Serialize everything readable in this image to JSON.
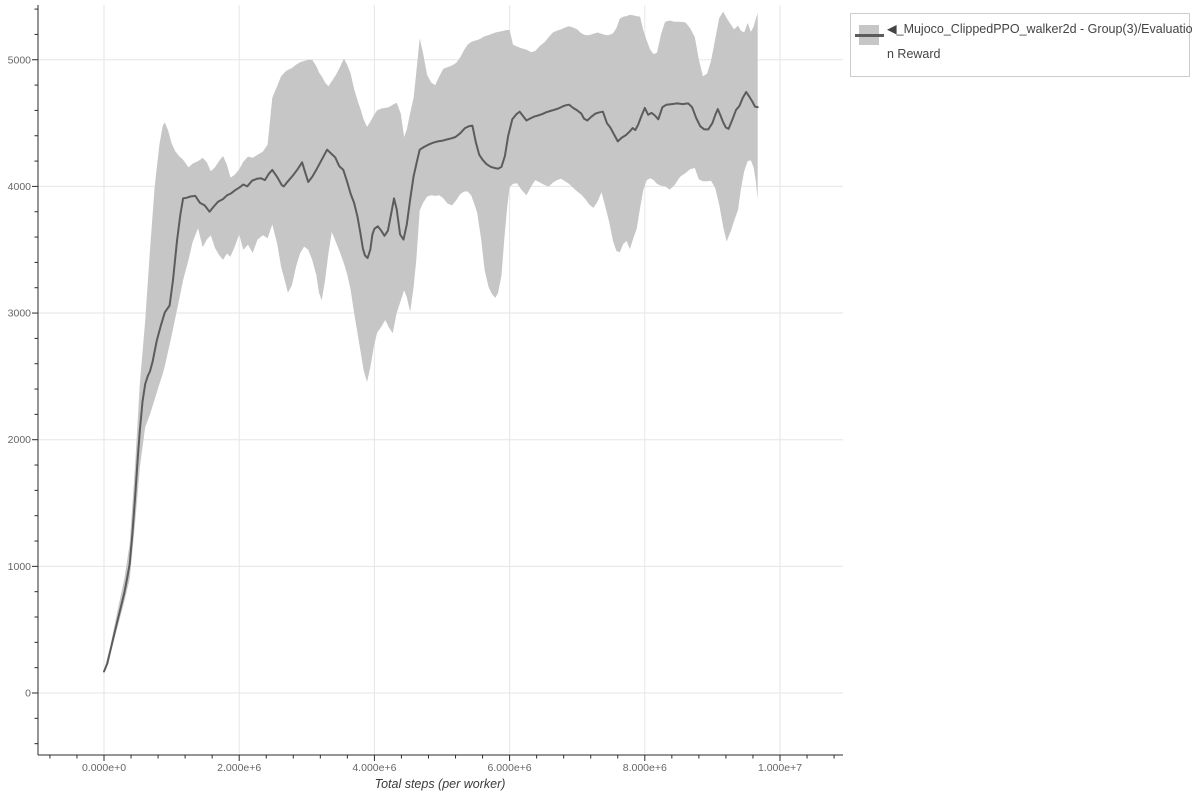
{
  "legend": {
    "label_full": "◀_Mujoco_ClippedPPO_walker2d - Group(3)/Evaluation Reward",
    "label_line1": "◀_Mujoco_ClippedPPO_walker2d - Group(3)/Evaluatio",
    "label_line2": "n Reward"
  },
  "colors": {
    "band": "#c6c6c6",
    "mean_line": "#5c5c5c",
    "grid": "#e6e6e6",
    "axis": "#2b2b2b",
    "tick_label": "#666666",
    "legend_border": "#cccccc"
  },
  "chart_data": {
    "type": "line",
    "title": "",
    "xlabel": "Total steps (per worker)",
    "ylabel": "",
    "x_units": "steps (values in millions)",
    "grid": true,
    "legend_position": "top-right-outside",
    "x_tick_values": [
      0,
      2,
      4,
      6,
      8,
      10
    ],
    "x_tick_labels": [
      "0.000e+0",
      "2.000e+6",
      "4.000e+6",
      "6.000e+6",
      "8.000e+6",
      "1.000e+7"
    ],
    "y_tick_values": [
      0,
      1000,
      2000,
      3000,
      4000,
      5000
    ],
    "y_tick_labels": [
      "0",
      "1000",
      "2000",
      "3000",
      "4000",
      "5000"
    ],
    "xlim": [
      -0.98,
      10.93
    ],
    "ylim": [
      -490,
      5435
    ],
    "minor_x_step": 0.4,
    "minor_y_step": 200,
    "series": [
      {
        "name": "◀_Mujoco_ClippedPPO_walker2d - Group(3)/Evaluation Reward",
        "x": [
          0,
          0.05,
          0.1,
          0.15,
          0.2,
          0.25,
          0.3,
          0.34,
          0.38,
          0.42,
          0.46,
          0.5,
          0.53,
          0.57,
          0.61,
          0.65,
          0.68,
          0.72,
          0.78,
          0.84,
          0.9,
          0.97,
          1.02,
          1.08,
          1.13,
          1.17,
          1.22,
          1.28,
          1.35,
          1.42,
          1.49,
          1.56,
          1.63,
          1.69,
          1.76,
          1.82,
          1.88,
          1.94,
          2.0,
          2.06,
          2.12,
          2.19,
          2.26,
          2.32,
          2.38,
          2.44,
          2.49,
          2.56,
          2.63,
          2.66,
          2.72,
          2.8,
          2.87,
          2.93,
          2.97,
          3.02,
          3.08,
          3.15,
          3.22,
          3.3,
          3.36,
          3.42,
          3.48,
          3.54,
          3.6,
          3.65,
          3.7,
          3.75,
          3.79,
          3.83,
          3.86,
          3.9,
          3.94,
          3.97,
          4.0,
          4.05,
          4.1,
          4.15,
          4.2,
          4.25,
          4.29,
          4.33,
          4.38,
          4.43,
          4.48,
          4.53,
          4.58,
          4.63,
          4.67,
          4.73,
          4.8,
          4.87,
          4.94,
          5.0,
          5.07,
          5.14,
          5.2,
          5.27,
          5.34,
          5.4,
          5.45,
          5.5,
          5.55,
          5.6,
          5.66,
          5.72,
          5.78,
          5.83,
          5.88,
          5.93,
          5.98,
          6.04,
          6.1,
          6.15,
          6.2,
          6.25,
          6.3,
          6.36,
          6.42,
          6.48,
          6.54,
          6.6,
          6.66,
          6.72,
          6.78,
          6.83,
          6.88,
          6.94,
          7.0,
          7.06,
          7.1,
          7.15,
          7.21,
          7.27,
          7.33,
          7.38,
          7.44,
          7.49,
          7.55,
          7.6,
          7.66,
          7.72,
          7.78,
          7.82,
          7.86,
          7.9,
          7.95,
          8.0,
          8.05,
          8.1,
          8.15,
          8.2,
          8.26,
          8.32,
          8.4,
          8.48,
          8.56,
          8.64,
          8.7,
          8.76,
          8.82,
          8.88,
          8.94,
          9.0,
          9.05,
          9.08,
          9.12,
          9.16,
          9.2,
          9.24,
          9.29,
          9.35,
          9.4,
          9.45,
          9.5,
          9.55,
          9.59,
          9.63,
          9.67
        ],
        "mean": [
          170,
          235,
          350,
          460,
          570,
          680,
          790,
          900,
          1020,
          1260,
          1545,
          1860,
          2070,
          2300,
          2440,
          2505,
          2540,
          2620,
          2780,
          2900,
          3005,
          3060,
          3260,
          3570,
          3780,
          3905,
          3910,
          3920,
          3925,
          3870,
          3850,
          3800,
          3845,
          3880,
          3900,
          3930,
          3945,
          3970,
          3990,
          4015,
          4000,
          4045,
          4060,
          4065,
          4050,
          4100,
          4130,
          4075,
          4010,
          4000,
          4040,
          4090,
          4140,
          4190,
          4120,
          4035,
          4075,
          4140,
          4210,
          4290,
          4260,
          4230,
          4160,
          4130,
          4030,
          3940,
          3870,
          3760,
          3640,
          3510,
          3455,
          3435,
          3500,
          3620,
          3665,
          3685,
          3650,
          3610,
          3650,
          3790,
          3905,
          3820,
          3620,
          3580,
          3700,
          3900,
          4080,
          4200,
          4290,
          4310,
          4330,
          4345,
          4355,
          4360,
          4370,
          4380,
          4390,
          4420,
          4460,
          4475,
          4480,
          4350,
          4250,
          4210,
          4175,
          4155,
          4145,
          4140,
          4155,
          4240,
          4400,
          4530,
          4570,
          4590,
          4555,
          4520,
          4535,
          4550,
          4560,
          4570,
          4585,
          4595,
          4605,
          4615,
          4630,
          4640,
          4645,
          4620,
          4600,
          4575,
          4535,
          4520,
          4550,
          4575,
          4585,
          4590,
          4500,
          4465,
          4405,
          4355,
          4385,
          4405,
          4435,
          4460,
          4445,
          4485,
          4555,
          4620,
          4565,
          4580,
          4560,
          4530,
          4625,
          4645,
          4650,
          4655,
          4650,
          4655,
          4625,
          4540,
          4475,
          4450,
          4450,
          4500,
          4575,
          4610,
          4560,
          4505,
          4465,
          4455,
          4520,
          4605,
          4635,
          4700,
          4745,
          4705,
          4670,
          4630,
          4625
        ]
      }
    ],
    "band": {
      "name": "std-band",
      "x": [
        0,
        0.1,
        0.2,
        0.3,
        0.38,
        0.46,
        0.53,
        0.61,
        0.68,
        0.75,
        0.82,
        0.87,
        0.9,
        0.95,
        1.0,
        1.05,
        1.11,
        1.17,
        1.25,
        1.31,
        1.39,
        1.46,
        1.52,
        1.58,
        1.64,
        1.7,
        1.76,
        1.82,
        1.87,
        1.93,
        2.0,
        2.06,
        2.13,
        2.2,
        2.27,
        2.35,
        2.42,
        2.49,
        2.56,
        2.62,
        2.68,
        2.72,
        2.78,
        2.84,
        2.9,
        2.96,
        3.02,
        3.08,
        3.14,
        3.18,
        3.22,
        3.27,
        3.32,
        3.37,
        3.43,
        3.49,
        3.55,
        3.6,
        3.65,
        3.7,
        3.75,
        3.8,
        3.84,
        3.89,
        3.94,
        3.99,
        4.04,
        4.1,
        4.16,
        4.21,
        4.27,
        4.33,
        4.39,
        4.44,
        4.48,
        4.53,
        4.58,
        4.62,
        4.67,
        4.72,
        4.78,
        4.84,
        4.9,
        4.96,
        5.02,
        5.08,
        5.15,
        5.21,
        5.27,
        5.33,
        5.38,
        5.43,
        5.48,
        5.52,
        5.58,
        5.63,
        5.69,
        5.74,
        5.79,
        5.83,
        5.88,
        5.92,
        5.96,
        6.0,
        6.05,
        6.11,
        6.18,
        6.25,
        6.32,
        6.38,
        6.45,
        6.52,
        6.58,
        6.64,
        6.7,
        6.76,
        6.82,
        6.88,
        6.94,
        7.0,
        7.06,
        7.12,
        7.18,
        7.24,
        7.3,
        7.36,
        7.42,
        7.47,
        7.53,
        7.58,
        7.63,
        7.68,
        7.73,
        7.78,
        7.83,
        7.88,
        7.93,
        7.98,
        8.03,
        8.08,
        8.13,
        8.18,
        8.24,
        8.3,
        8.37,
        8.44,
        8.52,
        8.6,
        8.67,
        8.74,
        8.8,
        8.86,
        8.92,
        8.98,
        9.04,
        9.1,
        9.16,
        9.21,
        9.27,
        9.32,
        9.38,
        9.42,
        9.47,
        9.52,
        9.57,
        9.61,
        9.64,
        9.67
      ],
      "lower": [
        165,
        320,
        520,
        720,
        900,
        1340,
        1780,
        2100,
        2200,
        2320,
        2440,
        2520,
        2580,
        2700,
        2820,
        2950,
        3100,
        3260,
        3420,
        3560,
        3670,
        3520,
        3580,
        3615,
        3515,
        3460,
        3420,
        3470,
        3445,
        3520,
        3620,
        3500,
        3540,
        3475,
        3580,
        3615,
        3590,
        3700,
        3550,
        3365,
        3245,
        3160,
        3220,
        3365,
        3470,
        3525,
        3500,
        3420,
        3300,
        3160,
        3100,
        3260,
        3470,
        3640,
        3560,
        3480,
        3390,
        3300,
        3180,
        3000,
        2840,
        2680,
        2550,
        2455,
        2570,
        2730,
        2845,
        2890,
        2945,
        2890,
        2840,
        3000,
        3100,
        3180,
        3125,
        3010,
        3205,
        3420,
        3810,
        3870,
        3920,
        3930,
        3925,
        3930,
        3905,
        3865,
        3850,
        3890,
        3940,
        3960,
        3960,
        3930,
        3860,
        3790,
        3580,
        3340,
        3205,
        3150,
        3120,
        3160,
        3300,
        3575,
        3815,
        3995,
        4020,
        4025,
        3970,
        3930,
        4000,
        4050,
        4030,
        4010,
        4000,
        4030,
        4050,
        4060,
        4040,
        4020,
        3990,
        3960,
        3935,
        3900,
        3855,
        3830,
        3880,
        3955,
        3830,
        3725,
        3570,
        3490,
        3480,
        3545,
        3570,
        3505,
        3590,
        3665,
        3830,
        3975,
        4050,
        4065,
        4050,
        4020,
        4005,
        4000,
        3975,
        4010,
        4075,
        4105,
        4135,
        4145,
        4055,
        4040,
        4040,
        4045,
        3990,
        3855,
        3680,
        3565,
        3645,
        3725,
        3815,
        3975,
        4120,
        4200,
        4205,
        4150,
        4050,
        3895
      ],
      "upper": [
        175,
        390,
        650,
        900,
        1180,
        1800,
        2440,
        2940,
        3500,
        4000,
        4330,
        4480,
        4505,
        4440,
        4340,
        4280,
        4240,
        4210,
        4150,
        4180,
        4200,
        4225,
        4190,
        4120,
        4150,
        4200,
        4240,
        4170,
        4070,
        4090,
        4135,
        4195,
        4235,
        4225,
        4250,
        4275,
        4330,
        4700,
        4790,
        4870,
        4905,
        4920,
        4935,
        4960,
        4980,
        4990,
        5000,
        5000,
        4950,
        4900,
        4870,
        4820,
        4790,
        4830,
        4880,
        4940,
        5010,
        4955,
        4890,
        4770,
        4680,
        4600,
        4530,
        4470,
        4510,
        4560,
        4600,
        4615,
        4620,
        4625,
        4645,
        4660,
        4575,
        4390,
        4450,
        4580,
        4700,
        4900,
        5170,
        5050,
        4880,
        4820,
        4800,
        4870,
        4930,
        4940,
        4955,
        4975,
        5020,
        5080,
        5120,
        5140,
        5150,
        5155,
        5170,
        5185,
        5195,
        5205,
        5215,
        5220,
        5225,
        5230,
        5235,
        5235,
        5120,
        5105,
        5090,
        5080,
        5060,
        5070,
        5110,
        5140,
        5180,
        5215,
        5230,
        5240,
        5255,
        5265,
        5255,
        5240,
        5210,
        5195,
        5195,
        5205,
        5215,
        5205,
        5195,
        5195,
        5210,
        5250,
        5325,
        5340,
        5345,
        5355,
        5350,
        5345,
        5340,
        5230,
        5150,
        5080,
        5045,
        5055,
        5200,
        5300,
        5310,
        5300,
        5300,
        5295,
        5250,
        5180,
        5000,
        4870,
        4890,
        4990,
        5160,
        5330,
        5380,
        5330,
        5280,
        5240,
        5270,
        5230,
        5215,
        5290,
        5220,
        5260,
        5320,
        5370
      ]
    }
  }
}
